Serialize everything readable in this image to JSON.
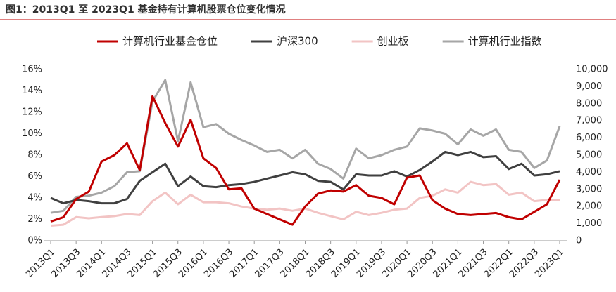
{
  "chart_data": {
    "type": "line",
    "title": "图1：2013Q1 至 2023Q1 基金持有计算机股票仓位变化情况",
    "categories": [
      "2013Q1",
      null,
      "2013Q3",
      null,
      "2014Q1",
      null,
      "2014Q3",
      null,
      "2015Q1",
      null,
      "2015Q3",
      null,
      "2016Q1",
      null,
      "2016Q3",
      null,
      "2017Q1",
      null,
      "2017Q3",
      null,
      "2018Q1",
      null,
      "2018Q3",
      null,
      "2019Q1",
      null,
      "2019Q3",
      null,
      "2020Q1",
      null,
      "2020Q3",
      null,
      "2021Q1",
      null,
      "2021Q3",
      null,
      "2022Q1",
      null,
      "2022Q3",
      null,
      "2023Q1"
    ],
    "series": [
      {
        "name": "计算机行业基金仓位",
        "color": "#c00000",
        "values": [
          1.8,
          2.2,
          3.9,
          4.6,
          7.4,
          8.0,
          9.1,
          6.6,
          13.5,
          11.0,
          8.8,
          11.3,
          7.7,
          6.8,
          4.8,
          4.9,
          3.0,
          2.5,
          2.0,
          1.5,
          3.2,
          4.4,
          4.7,
          4.6,
          5.2,
          4.2,
          4.0,
          3.4,
          5.9,
          6.1,
          3.8,
          3.0,
          2.5,
          2.4,
          2.5,
          2.6,
          2.2,
          2.0,
          2.7,
          3.4,
          5.7
        ]
      },
      {
        "name": "沪深300",
        "color": "#404040",
        "axis": "y2",
        "values": [
          2500,
          2190,
          2380,
          2310,
          2190,
          2190,
          2440,
          3500,
          4000,
          4500,
          3190,
          3750,
          3190,
          3130,
          3250,
          3310,
          3440,
          3630,
          3810,
          4000,
          3880,
          3500,
          3440,
          3000,
          3880,
          3810,
          3810,
          4060,
          3750,
          4130,
          4630,
          5190,
          5000,
          5190,
          4880,
          4940,
          4190,
          4500,
          3810,
          3880,
          4060
        ]
      },
      {
        "name": "创业板",
        "color": "#f2c4c4",
        "axis": "y2",
        "values": [
          880,
          940,
          1380,
          1310,
          1380,
          1440,
          1560,
          1500,
          2310,
          2810,
          2130,
          2690,
          2250,
          2250,
          2190,
          2000,
          1880,
          1810,
          1880,
          1750,
          1880,
          1630,
          1440,
          1250,
          1690,
          1500,
          1630,
          1810,
          1880,
          2500,
          2630,
          3000,
          2810,
          3440,
          3250,
          3310,
          2690,
          2810,
          2310,
          2380,
          2380
        ]
      },
      {
        "name": "计算机行业指数",
        "color": "#a6a6a6",
        "axis": "y2",
        "values": [
          1630,
          1750,
          2560,
          2630,
          2810,
          3190,
          4000,
          4060,
          8130,
          9380,
          5810,
          9250,
          6630,
          6810,
          6250,
          5880,
          5560,
          5190,
          5310,
          4810,
          5310,
          4500,
          4190,
          3630,
          5380,
          4810,
          5000,
          5310,
          5500,
          6560,
          6440,
          6250,
          5630,
          6500,
          6130,
          6500,
          5310,
          5190,
          4250,
          4690,
          6690
        ]
      }
    ],
    "ylim": [
      0,
      16
    ],
    "yticks": [
      {
        "value": 0,
        "label": "0%"
      },
      {
        "value": 2,
        "label": "2%"
      },
      {
        "value": 4,
        "label": "4%"
      },
      {
        "value": 6,
        "label": "6%"
      },
      {
        "value": 8,
        "label": "8%"
      },
      {
        "value": 10,
        "label": "10%"
      },
      {
        "value": 12,
        "label": "12%"
      },
      {
        "value": 14,
        "label": "14%"
      },
      {
        "value": 16,
        "label": "16%"
      }
    ],
    "y2lim": [
      0,
      10000
    ],
    "y2ticks": [
      0,
      {
        "value": 1000,
        "label": "1,000"
      },
      {
        "value": 2000,
        "label": "2,000"
      },
      {
        "value": 3000,
        "label": "3,000"
      },
      {
        "value": 4000,
        "label": "4,000"
      },
      {
        "value": 5000,
        "label": "5,000"
      },
      {
        "value": 6000,
        "label": "6,000"
      },
      {
        "value": 7000,
        "label": "7,000"
      },
      {
        "value": 8000,
        "label": "8,000"
      },
      {
        "value": 9000,
        "label": "9,000"
      },
      {
        "value": 10000,
        "label": "10,000"
      }
    ],
    "grid": false,
    "legend": "top"
  }
}
